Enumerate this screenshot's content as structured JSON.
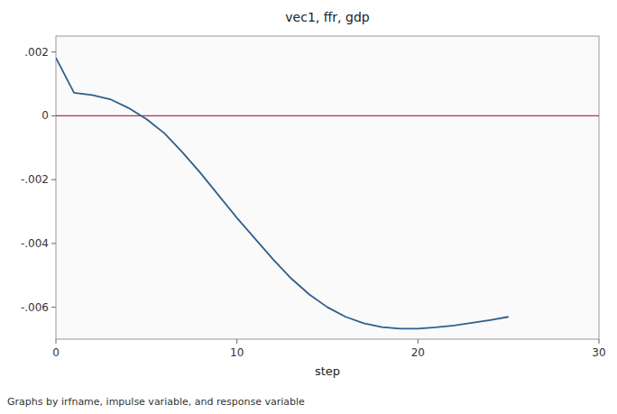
{
  "chart_data": {
    "type": "line",
    "title": "vec1, ffr, gdp",
    "xlabel": "step",
    "annotation": "Graphs by irfname, impulse variable, and response variable",
    "x": [
      0,
      1,
      2,
      3,
      4,
      5,
      6,
      7,
      8,
      9,
      10,
      11,
      12,
      13,
      14,
      15,
      16,
      17,
      18,
      19,
      20,
      21,
      22,
      23,
      24,
      25
    ],
    "values": [
      0.00182,
      0.00072,
      0.00065,
      0.00052,
      0.00025,
      -0.0001,
      -0.00055,
      -0.00115,
      -0.0018,
      -0.0025,
      -0.0032,
      -0.00385,
      -0.0045,
      -0.0051,
      -0.0056,
      -0.006,
      -0.0063,
      -0.0065,
      -0.00662,
      -0.00667,
      -0.00667,
      -0.00663,
      -0.00657,
      -0.00649,
      -0.0064,
      -0.0063
    ],
    "color": "#2e5f8a",
    "reference_line": {
      "value": 0,
      "color": "#b03060"
    },
    "xlim": [
      0,
      30
    ],
    "ylim": [
      -0.007,
      0.0025
    ],
    "xticks": [
      0,
      10,
      20,
      30
    ],
    "yticks": [
      {
        "value": -0.006,
        "label": "-.006"
      },
      {
        "value": -0.004,
        "label": "-.004"
      },
      {
        "value": -0.002,
        "label": "-.002"
      },
      0,
      {
        "value": 0.002,
        "label": ".002"
      }
    ],
    "grid": false
  }
}
